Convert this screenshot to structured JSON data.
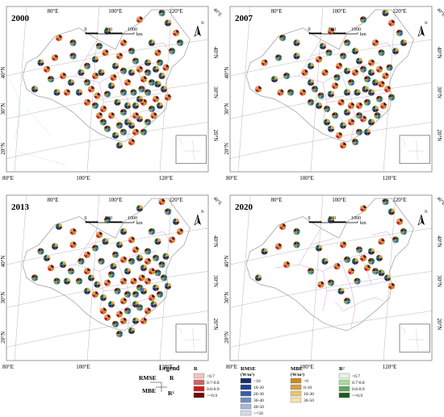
{
  "panels": [
    {
      "id": "p2000",
      "year": "2000",
      "station_count": 88
    },
    {
      "id": "p2007",
      "year": "2007",
      "station_count": 80
    },
    {
      "id": "p2013",
      "year": "2013",
      "station_count": 84
    },
    {
      "id": "p2020",
      "year": "2020",
      "station_count": 38
    }
  ],
  "map_labels": {
    "lon_top": [
      "80°E",
      "100°E",
      "120°E"
    ],
    "lon_bottom": [
      "80°E",
      "100°E",
      "120°E"
    ],
    "lat_left": [
      "40°N",
      "30°N",
      "20°N"
    ],
    "lat_right": [
      "40°N",
      "30°N",
      "20°N"
    ],
    "corner_top_right": "40°E",
    "scale": {
      "ticks": [
        "0",
        "500",
        "1000"
      ],
      "unit": "km"
    },
    "north": "N"
  },
  "legend": {
    "title": "Legend",
    "key": {
      "rmse": "RMSE",
      "r": "R",
      "mbe": "MBE",
      "r2": "R²"
    },
    "groups": [
      {
        "title": "R",
        "unit": "",
        "items": [
          {
            "label": "<0.7",
            "color": "#f2c4c4"
          },
          {
            "label": "0.7-0.8",
            "color": "#cc6666"
          },
          {
            "label": "0.8-0.9",
            "color": "#cc1a1a"
          },
          {
            "label": ">=0.9",
            "color": "#6b0a0a"
          }
        ]
      },
      {
        "title": "RMSE",
        "unit": "(W/m²)",
        "items": [
          {
            "label": "<10",
            "color": "#1a2a6b"
          },
          {
            "label": "10-20",
            "color": "#22408c"
          },
          {
            "label": "20-30",
            "color": "#3560a8"
          },
          {
            "label": "30-40",
            "color": "#6d8fc0"
          },
          {
            "label": "40-50",
            "color": "#a4b8d8"
          },
          {
            "label": ">=50",
            "color": "#d2dcec"
          }
        ]
      },
      {
        "title": "MBE",
        "unit": "(W/m²)",
        "items": [
          {
            "label": "<0",
            "color": "#c8891e"
          },
          {
            "label": "0-10",
            "color": "#d4a047"
          },
          {
            "label": "10-30",
            "color": "#e8c472"
          },
          {
            "label": "30-50",
            "color": "#f4e2b0"
          }
        ]
      },
      {
        "title": "R²",
        "unit": "",
        "items": [
          {
            "label": "<0.7",
            "color": "#e6f3e2"
          },
          {
            "label": "0.7-0.8",
            "color": "#a8d8a0"
          },
          {
            "label": "0.8-0.9",
            "color": "#5aa85a"
          },
          {
            "label": ">=0.9",
            "color": "#1e5c1e"
          }
        ]
      }
    ]
  },
  "colors": {
    "boundary": "#8c8c8c",
    "province": "#c08ac0",
    "graticule": "#9a9a9a",
    "dashed_line": "#a0c8e6"
  }
}
